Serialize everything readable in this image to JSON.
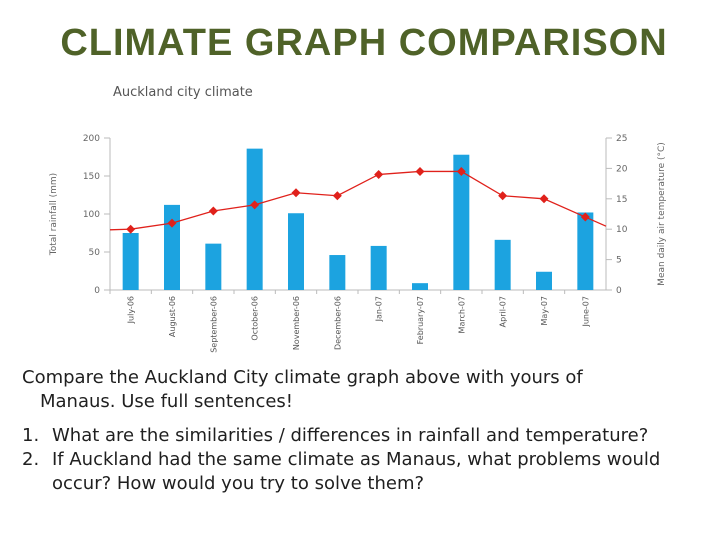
{
  "slide": {
    "title": "Climate graph comparison",
    "instruction_line1": "Compare the Auckland City climate graph above with yours of",
    "instruction_line2": "Manaus. Use full sentences!",
    "questions": [
      {
        "number": "1.",
        "text": "What are the similarities / differences in rainfall and temperature?"
      },
      {
        "number": "2.",
        "text": "If Auckland had the same climate as Manaus, what problems would occur? How would you try to solve them?"
      }
    ]
  },
  "colors": {
    "title": "#4f6228",
    "bars": "#1ca3e0",
    "line": "#e0211b",
    "axis": "#bbbbbb",
    "text": "#1f1f1f"
  },
  "chart_data": {
    "type": "bar",
    "title": "Auckland city climate",
    "categories": [
      "July-06",
      "August-06",
      "September-06",
      "October-06",
      "November-06",
      "December-06",
      "Jan-07",
      "February-07",
      "March-07",
      "April-07",
      "May-07",
      "June-07"
    ],
    "series": [
      {
        "name": "Total rainfall (mm)",
        "type": "bar",
        "axis": "left",
        "values": [
          75,
          112,
          61,
          186,
          101,
          46,
          58,
          9,
          178,
          66,
          24,
          102
        ]
      },
      {
        "name": "Mean daily air temperature (°C)",
        "type": "line",
        "axis": "right",
        "values": [
          10,
          11,
          13,
          14,
          16,
          15.5,
          19,
          19.5,
          19.5,
          15.5,
          15,
          12
        ]
      }
    ],
    "ylabel": "Total rainfall (mm)",
    "ylabel_right": "Mean daily air temperature (°C)",
    "ylim": [
      0,
      200
    ],
    "yticks": [
      "0",
      "50",
      "100",
      "150",
      "200"
    ],
    "ylim_right": [
      0,
      25
    ],
    "yticks_right": [
      "0",
      "5",
      "10",
      "15",
      "20",
      "25"
    ]
  }
}
